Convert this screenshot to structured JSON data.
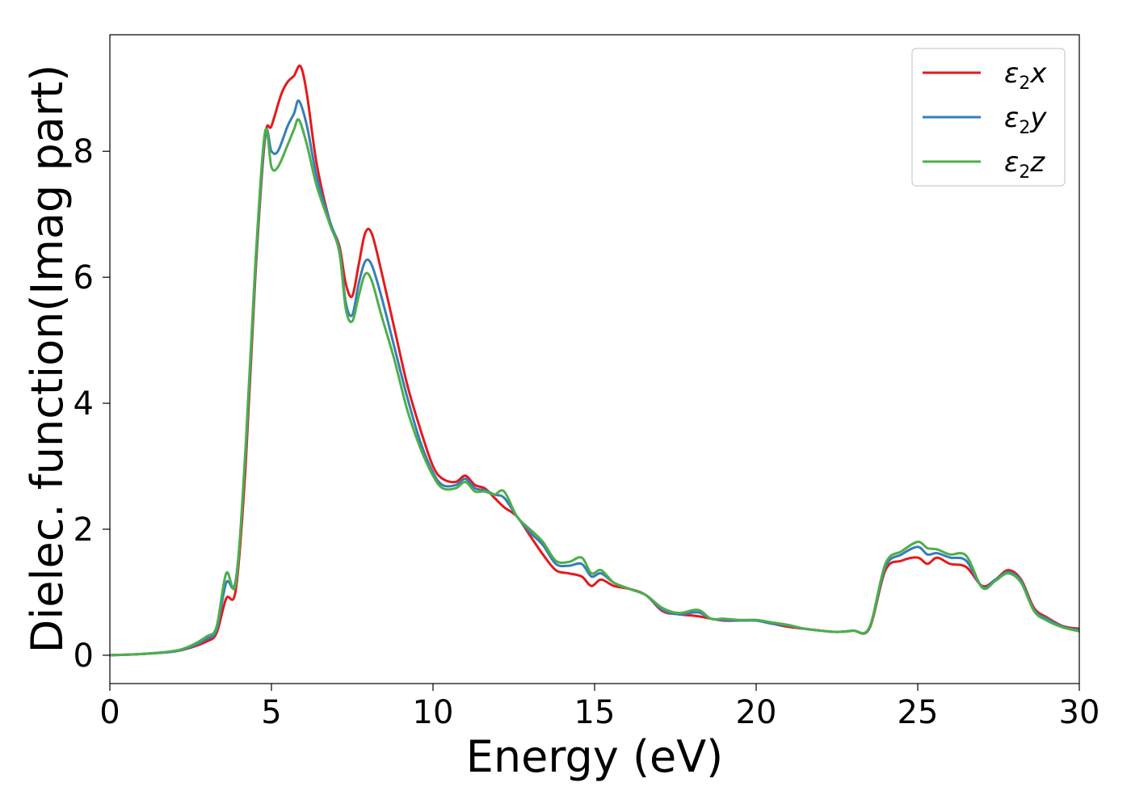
{
  "chart_data": {
    "type": "line",
    "title": "",
    "xlabel": "Energy (eV)",
    "ylabel": "Dielec. function(Imag part)",
    "xlim": [
      0,
      30
    ],
    "ylim": [
      -0.45,
      9.85
    ],
    "xticks": [
      0,
      5,
      10,
      15,
      20,
      25,
      30
    ],
    "xtick_labels": [
      "0",
      "5",
      "10",
      "15",
      "20",
      "25",
      "30"
    ],
    "yticks": [
      0,
      2,
      4,
      6,
      8
    ],
    "ytick_labels": [
      "0",
      "2",
      "4",
      "6",
      "8"
    ],
    "grid": false,
    "legend_position": "top-right",
    "series": [
      {
        "name": "ε2x",
        "legend_base": "ε",
        "legend_sub": "2",
        "legend_tail": "x",
        "color": "#e41a1c",
        "points": [
          [
            0,
            0
          ],
          [
            1,
            0.02
          ],
          [
            2,
            0.06
          ],
          [
            2.5,
            0.12
          ],
          [
            3,
            0.22
          ],
          [
            3.3,
            0.35
          ],
          [
            3.6,
            0.9
          ],
          [
            3.9,
            1.05
          ],
          [
            4.2,
            3.0
          ],
          [
            4.5,
            6.0
          ],
          [
            4.8,
            8.2
          ],
          [
            5.0,
            8.4
          ],
          [
            5.3,
            8.9
          ],
          [
            5.5,
            9.1
          ],
          [
            5.7,
            9.2
          ],
          [
            5.9,
            9.35
          ],
          [
            6.1,
            8.9
          ],
          [
            6.4,
            7.8
          ],
          [
            6.8,
            6.9
          ],
          [
            7.1,
            6.5
          ],
          [
            7.3,
            5.9
          ],
          [
            7.5,
            5.7
          ],
          [
            7.7,
            6.2
          ],
          [
            7.9,
            6.7
          ],
          [
            8.1,
            6.7
          ],
          [
            8.4,
            6.1
          ],
          [
            8.8,
            5.2
          ],
          [
            9.2,
            4.3
          ],
          [
            9.6,
            3.6
          ],
          [
            10.0,
            3.0
          ],
          [
            10.3,
            2.8
          ],
          [
            10.7,
            2.75
          ],
          [
            11.0,
            2.85
          ],
          [
            11.3,
            2.7
          ],
          [
            11.6,
            2.65
          ],
          [
            11.9,
            2.5
          ],
          [
            12.2,
            2.35
          ],
          [
            12.6,
            2.2
          ],
          [
            13.0,
            1.9
          ],
          [
            13.4,
            1.6
          ],
          [
            13.8,
            1.35
          ],
          [
            14.2,
            1.3
          ],
          [
            14.6,
            1.25
          ],
          [
            14.9,
            1.1
          ],
          [
            15.2,
            1.2
          ],
          [
            15.6,
            1.1
          ],
          [
            16.1,
            1.05
          ],
          [
            16.6,
            0.95
          ],
          [
            17.1,
            0.7
          ],
          [
            17.6,
            0.65
          ],
          [
            18.2,
            0.62
          ],
          [
            18.6,
            0.58
          ],
          [
            19.0,
            0.55
          ],
          [
            19.5,
            0.55
          ],
          [
            20.0,
            0.55
          ],
          [
            20.5,
            0.5
          ],
          [
            21.0,
            0.45
          ],
          [
            21.5,
            0.42
          ],
          [
            22.0,
            0.39
          ],
          [
            22.5,
            0.37
          ],
          [
            23.0,
            0.39
          ],
          [
            23.5,
            0.42
          ],
          [
            24.0,
            1.35
          ],
          [
            24.5,
            1.5
          ],
          [
            25.0,
            1.55
          ],
          [
            25.3,
            1.45
          ],
          [
            25.6,
            1.55
          ],
          [
            26.0,
            1.45
          ],
          [
            26.5,
            1.4
          ],
          [
            27.0,
            1.1
          ],
          [
            27.4,
            1.2
          ],
          [
            27.8,
            1.35
          ],
          [
            28.2,
            1.2
          ],
          [
            28.6,
            0.75
          ],
          [
            29.0,
            0.6
          ],
          [
            29.5,
            0.46
          ],
          [
            30.0,
            0.42
          ]
        ]
      },
      {
        "name": "ε2y",
        "legend_base": "ε",
        "legend_sub": "2",
        "legend_tail": "y",
        "color": "#377eb8",
        "points": [
          [
            0,
            0
          ],
          [
            1,
            0.02
          ],
          [
            2,
            0.06
          ],
          [
            2.5,
            0.13
          ],
          [
            3,
            0.26
          ],
          [
            3.3,
            0.4
          ],
          [
            3.6,
            1.15
          ],
          [
            3.9,
            1.2
          ],
          [
            4.2,
            3.2
          ],
          [
            4.5,
            6.1
          ],
          [
            4.8,
            8.25
          ],
          [
            5.0,
            8.0
          ],
          [
            5.2,
            8.0
          ],
          [
            5.5,
            8.4
          ],
          [
            5.7,
            8.6
          ],
          [
            5.85,
            8.8
          ],
          [
            6.1,
            8.4
          ],
          [
            6.4,
            7.6
          ],
          [
            6.8,
            6.9
          ],
          [
            7.1,
            6.45
          ],
          [
            7.3,
            5.6
          ],
          [
            7.5,
            5.4
          ],
          [
            7.7,
            5.9
          ],
          [
            7.9,
            6.25
          ],
          [
            8.1,
            6.2
          ],
          [
            8.4,
            5.7
          ],
          [
            8.8,
            4.9
          ],
          [
            9.2,
            4.1
          ],
          [
            9.6,
            3.4
          ],
          [
            10.0,
            2.9
          ],
          [
            10.3,
            2.7
          ],
          [
            10.7,
            2.7
          ],
          [
            11.0,
            2.8
          ],
          [
            11.3,
            2.65
          ],
          [
            11.6,
            2.62
          ],
          [
            11.9,
            2.55
          ],
          [
            12.2,
            2.5
          ],
          [
            12.6,
            2.2
          ],
          [
            13.0,
            1.95
          ],
          [
            13.4,
            1.75
          ],
          [
            13.8,
            1.45
          ],
          [
            14.2,
            1.42
          ],
          [
            14.6,
            1.45
          ],
          [
            14.9,
            1.25
          ],
          [
            15.2,
            1.3
          ],
          [
            15.6,
            1.15
          ],
          [
            16.1,
            1.05
          ],
          [
            16.6,
            0.95
          ],
          [
            17.1,
            0.72
          ],
          [
            17.6,
            0.65
          ],
          [
            18.2,
            0.68
          ],
          [
            18.6,
            0.58
          ],
          [
            19.0,
            0.56
          ],
          [
            19.5,
            0.55
          ],
          [
            20.0,
            0.55
          ],
          [
            20.5,
            0.5
          ],
          [
            21.0,
            0.47
          ],
          [
            21.5,
            0.42
          ],
          [
            22.0,
            0.39
          ],
          [
            22.5,
            0.37
          ],
          [
            23.0,
            0.39
          ],
          [
            23.5,
            0.43
          ],
          [
            24.0,
            1.4
          ],
          [
            24.5,
            1.6
          ],
          [
            25.0,
            1.72
          ],
          [
            25.3,
            1.6
          ],
          [
            25.6,
            1.62
          ],
          [
            26.0,
            1.55
          ],
          [
            26.5,
            1.5
          ],
          [
            27.0,
            1.08
          ],
          [
            27.4,
            1.2
          ],
          [
            27.8,
            1.32
          ],
          [
            28.2,
            1.18
          ],
          [
            28.6,
            0.72
          ],
          [
            29.0,
            0.58
          ],
          [
            29.5,
            0.45
          ],
          [
            30.0,
            0.4
          ]
        ]
      },
      {
        "name": "ε2z",
        "legend_base": "ε",
        "legend_sub": "2",
        "legend_tail": "z",
        "color": "#4daf4a",
        "points": [
          [
            0,
            0
          ],
          [
            1,
            0.02
          ],
          [
            2,
            0.07
          ],
          [
            2.5,
            0.15
          ],
          [
            3,
            0.3
          ],
          [
            3.3,
            0.45
          ],
          [
            3.6,
            1.3
          ],
          [
            3.9,
            1.15
          ],
          [
            4.2,
            3.3
          ],
          [
            4.5,
            6.2
          ],
          [
            4.8,
            8.3
          ],
          [
            5.0,
            7.75
          ],
          [
            5.2,
            7.75
          ],
          [
            5.5,
            8.1
          ],
          [
            5.7,
            8.35
          ],
          [
            5.85,
            8.5
          ],
          [
            6.1,
            8.1
          ],
          [
            6.4,
            7.45
          ],
          [
            6.8,
            6.85
          ],
          [
            7.1,
            6.4
          ],
          [
            7.3,
            5.5
          ],
          [
            7.5,
            5.3
          ],
          [
            7.7,
            5.7
          ],
          [
            7.9,
            6.05
          ],
          [
            8.1,
            5.95
          ],
          [
            8.4,
            5.4
          ],
          [
            8.8,
            4.7
          ],
          [
            9.2,
            3.9
          ],
          [
            9.6,
            3.3
          ],
          [
            10.0,
            2.85
          ],
          [
            10.3,
            2.65
          ],
          [
            10.7,
            2.65
          ],
          [
            11.0,
            2.75
          ],
          [
            11.3,
            2.6
          ],
          [
            11.6,
            2.6
          ],
          [
            11.9,
            2.55
          ],
          [
            12.2,
            2.6
          ],
          [
            12.6,
            2.2
          ],
          [
            13.0,
            2.0
          ],
          [
            13.4,
            1.8
          ],
          [
            13.8,
            1.5
          ],
          [
            14.2,
            1.48
          ],
          [
            14.6,
            1.55
          ],
          [
            14.9,
            1.3
          ],
          [
            15.2,
            1.35
          ],
          [
            15.6,
            1.15
          ],
          [
            16.1,
            1.05
          ],
          [
            16.6,
            0.95
          ],
          [
            17.1,
            0.75
          ],
          [
            17.6,
            0.67
          ],
          [
            18.2,
            0.72
          ],
          [
            18.6,
            0.58
          ],
          [
            19.0,
            0.58
          ],
          [
            19.5,
            0.56
          ],
          [
            20.0,
            0.56
          ],
          [
            20.5,
            0.52
          ],
          [
            21.0,
            0.48
          ],
          [
            21.5,
            0.42
          ],
          [
            22.0,
            0.39
          ],
          [
            22.5,
            0.37
          ],
          [
            23.0,
            0.39
          ],
          [
            23.5,
            0.44
          ],
          [
            24.0,
            1.45
          ],
          [
            24.5,
            1.65
          ],
          [
            25.0,
            1.8
          ],
          [
            25.3,
            1.7
          ],
          [
            25.6,
            1.68
          ],
          [
            26.0,
            1.6
          ],
          [
            26.5,
            1.58
          ],
          [
            27.0,
            1.07
          ],
          [
            27.4,
            1.18
          ],
          [
            27.8,
            1.3
          ],
          [
            28.2,
            1.15
          ],
          [
            28.6,
            0.7
          ],
          [
            29.0,
            0.55
          ],
          [
            29.5,
            0.44
          ],
          [
            30.0,
            0.38
          ]
        ]
      }
    ]
  }
}
